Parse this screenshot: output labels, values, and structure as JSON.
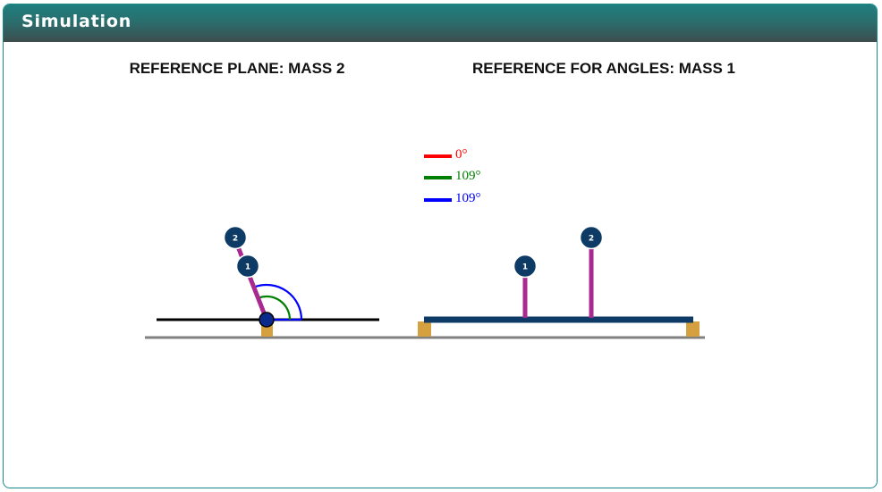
{
  "panel": {
    "title": "Simulation"
  },
  "left_view": {
    "heading": "REFERENCE PLANE: MASS 2",
    "mass_labels": [
      "2",
      "1"
    ]
  },
  "right_view": {
    "heading": "REFERENCE FOR ANGLES: MASS 1",
    "mass_labels": [
      "1",
      "2"
    ]
  },
  "legend": [
    {
      "label": "0°",
      "color": "#ff0000"
    },
    {
      "label": "109°",
      "color": "#008000"
    },
    {
      "label": "109°",
      "color": "#0000ff"
    }
  ],
  "colors": {
    "rod": "#a8298f",
    "mass": "#0e3a66",
    "beam": "#0e3a66",
    "ground": "#808080",
    "support": "#d4a040",
    "reference_line": "#000000"
  }
}
